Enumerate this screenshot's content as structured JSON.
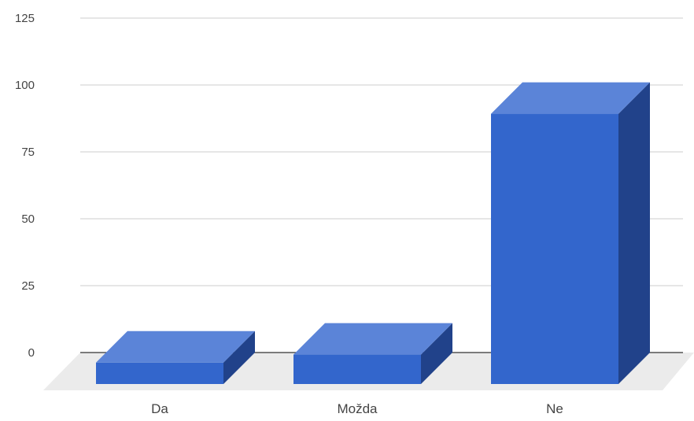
{
  "chart_data": {
    "type": "bar",
    "categories": [
      "Da",
      "Možda",
      "Ne"
    ],
    "values": [
      8,
      11,
      101
    ],
    "title": "",
    "xlabel": "",
    "ylabel": "",
    "ylim": [
      0,
      125
    ],
    "yticks": [
      0,
      25,
      50,
      75,
      100,
      125
    ],
    "grid": true,
    "three_d": true,
    "legend": "none",
    "colors": {
      "bar_front": "#3366cc",
      "bar_top": "#5b84d8",
      "bar_side": "#21428a",
      "floor": "#ebebeb",
      "grid": "#cccccc",
      "baseline": "#333333"
    }
  }
}
